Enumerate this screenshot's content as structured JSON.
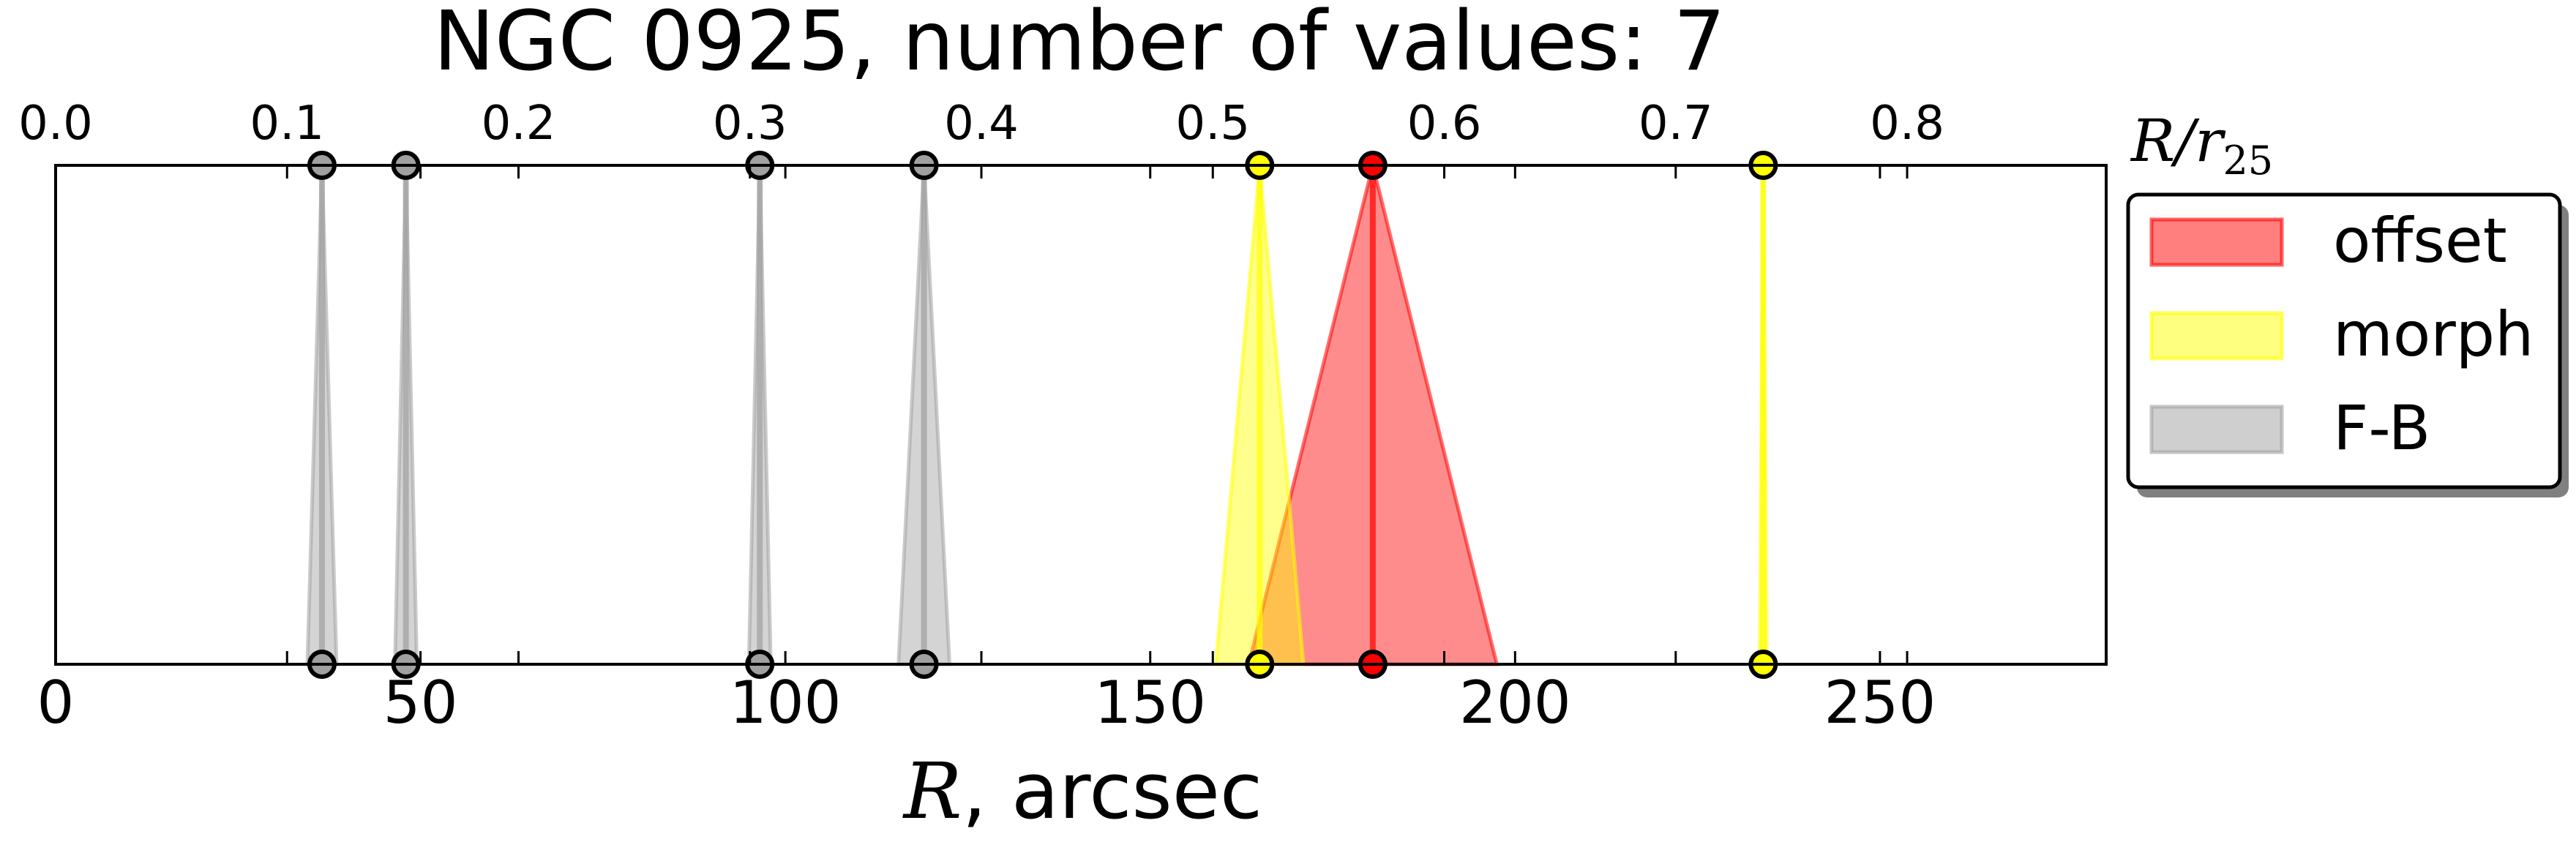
{
  "chart_data": {
    "type": "scatter",
    "title": "NGC 0925, number of values: 7",
    "xlabel_var": "R",
    "xlabel_rest": ", arcsec",
    "top_axis_label_main": "R/r",
    "top_axis_label_sub": "25",
    "xlim": [
      0,
      281
    ],
    "top_xlim": [
      0,
      0.886
    ],
    "bottom_ticks": [
      0,
      50,
      100,
      150,
      200,
      250
    ],
    "top_ticks": [
      0.0,
      0.1,
      0.2,
      0.3,
      0.4,
      0.5,
      0.6,
      0.7,
      0.8
    ],
    "top_tick_labels": [
      "0.0",
      "0.1",
      "0.2",
      "0.3",
      "0.4",
      "0.5",
      "0.6",
      "0.7",
      "0.8"
    ],
    "grid": false,
    "legend_placement": "outside-right",
    "series": [
      {
        "name": "offset",
        "color": "#ff0000",
        "points": [
          {
            "x": 180.5,
            "half_width": 17
          }
        ]
      },
      {
        "name": "morph",
        "color": "#ffff00",
        "points": [
          {
            "x": 165,
            "half_width": 6
          },
          {
            "x": 234,
            "half_width": 0.5
          }
        ]
      },
      {
        "name": "F-B",
        "color": "#a0a0a0",
        "points": [
          {
            "x": 36.5,
            "half_width": 2
          },
          {
            "x": 48,
            "half_width": 1.5
          },
          {
            "x": 96.5,
            "half_width": 1.5
          },
          {
            "x": 119,
            "half_width": 3.5
          }
        ]
      }
    ]
  }
}
